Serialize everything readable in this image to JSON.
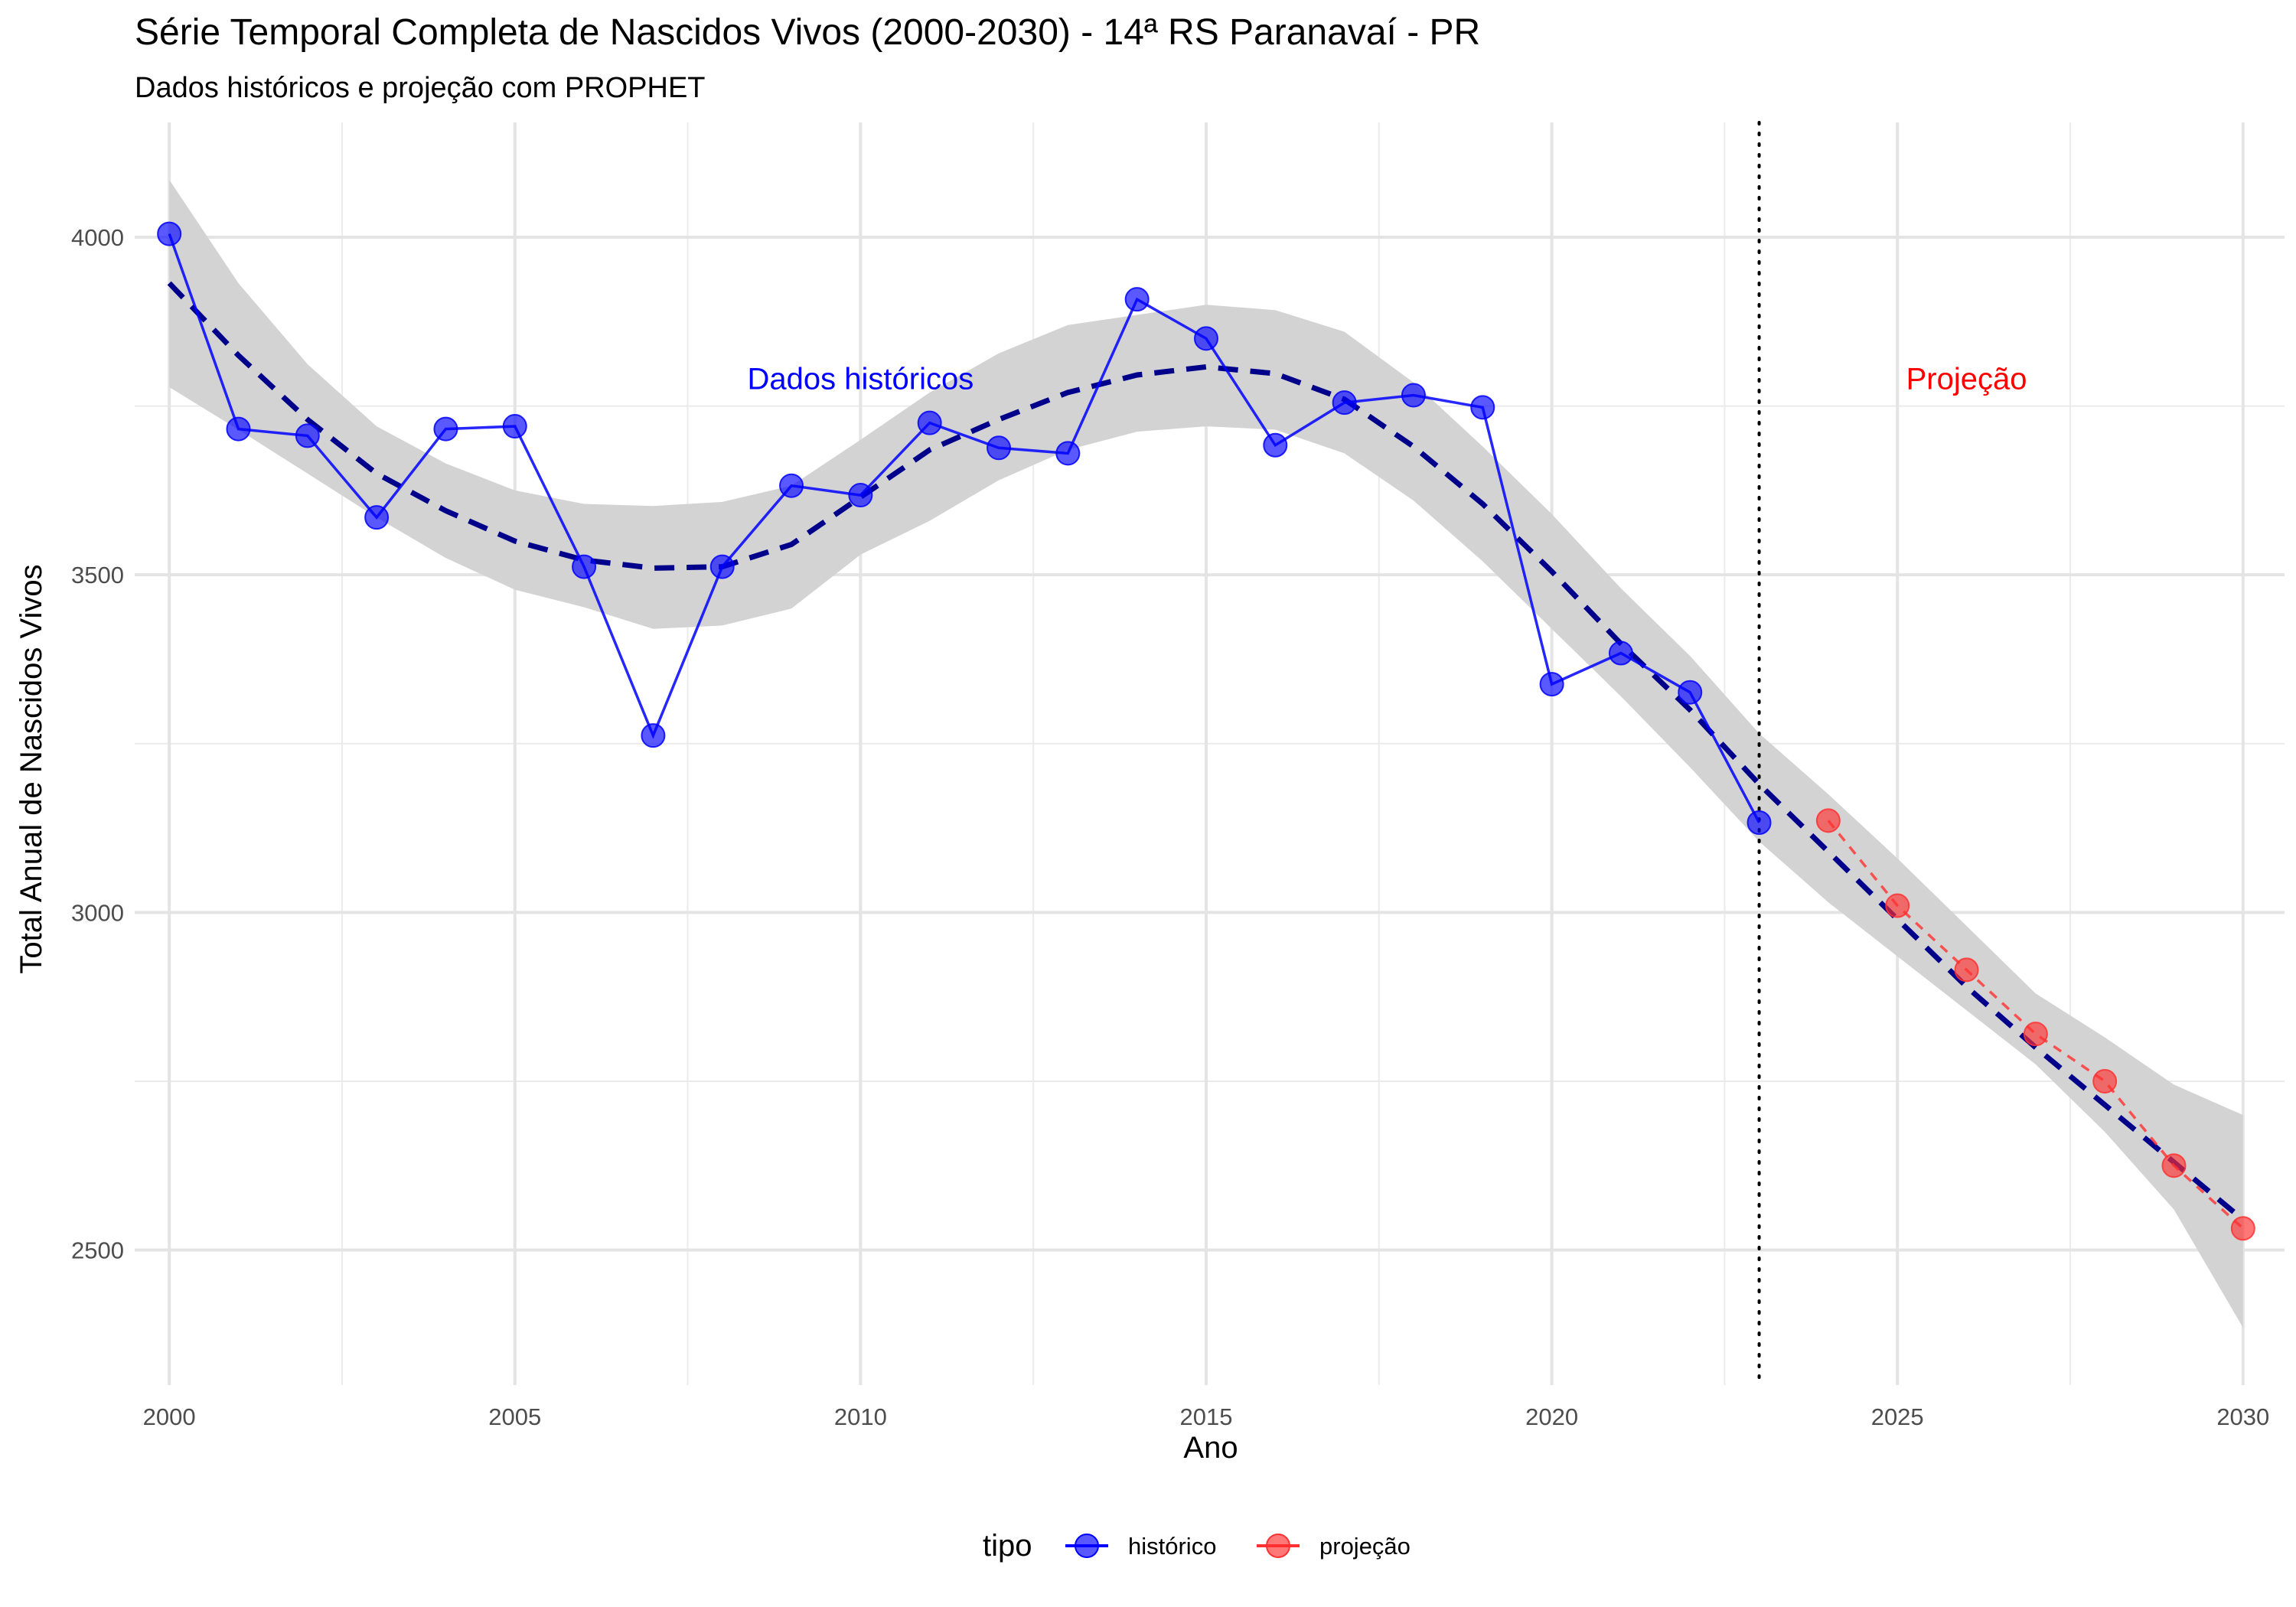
{
  "chart_data": {
    "type": "line",
    "title": "Série Temporal Completa de Nascidos Vivos (2000-2030) -  14ª RS Paranavaí - PR",
    "subtitle": "Dados históricos e projeção com PROPHET",
    "xlabel": "Ano",
    "ylabel": "Total Anual de Nascidos Vivos",
    "xlim": [
      1999.5,
      2030.6
    ],
    "ylim": [
      2300,
      4170
    ],
    "x_ticks": [
      2000,
      2005,
      2010,
      2015,
      2020,
      2025,
      2030
    ],
    "y_ticks": [
      2500,
      3000,
      3500,
      4000
    ],
    "grid": true,
    "legend": {
      "title": "tipo",
      "position": "bottom",
      "entries": [
        {
          "label": "histórico",
          "color": "#0000ff"
        },
        {
          "label": "projeção",
          "color": "#ff3030"
        }
      ]
    },
    "series": [
      {
        "name": "histórico",
        "color": "#0000ff",
        "style": "solid",
        "x": [
          2000,
          2001,
          2002,
          2003,
          2004,
          2005,
          2006,
          2007,
          2008,
          2009,
          2010,
          2011,
          2012,
          2013,
          2014,
          2015,
          2016,
          2017,
          2018,
          2019,
          2020,
          2021,
          2022,
          2023
        ],
        "y": [
          4005,
          3716,
          3706,
          3585,
          3716,
          3720,
          3512,
          3262,
          3512,
          3632,
          3618,
          3725,
          3688,
          3680,
          3908,
          3850,
          3692,
          3755,
          3766,
          3748,
          3338,
          3384,
          3326,
          3133
        ]
      },
      {
        "name": "projeção",
        "color": "#ff3030",
        "style": "dashed",
        "x": [
          2024,
          2025,
          2026,
          2027,
          2028,
          2029,
          2030
        ],
        "y": [
          3136,
          3010,
          2915,
          2820,
          2750,
          2625,
          2532
        ]
      }
    ],
    "trend": {
      "color": "#00008b",
      "style": "dashed",
      "x": [
        2000,
        2001,
        2002,
        2003,
        2004,
        2005,
        2006,
        2007,
        2008,
        2009,
        2010,
        2011,
        2012,
        2013,
        2014,
        2015,
        2016,
        2017,
        2018,
        2019,
        2020,
        2021,
        2022,
        2023,
        2024,
        2025,
        2026,
        2027,
        2028,
        2029,
        2030
      ],
      "y": [
        3932,
        3825,
        3730,
        3650,
        3595,
        3550,
        3522,
        3510,
        3512,
        3545,
        3615,
        3685,
        3730,
        3770,
        3796,
        3808,
        3798,
        3760,
        3690,
        3605,
        3505,
        3398,
        3300,
        3190,
        3090,
        2990,
        2890,
        2800,
        2715,
        2630,
        2545
      ],
      "ci_lower": [
        3778,
        3715,
        3650,
        3585,
        3525,
        3478,
        3452,
        3420,
        3425,
        3450,
        3530,
        3580,
        3640,
        3685,
        3712,
        3720,
        3715,
        3680,
        3610,
        3520,
        3420,
        3320,
        3215,
        3105,
        3015,
        2935,
        2855,
        2775,
        2675,
        2560,
        2385
      ],
      "ci_upper": [
        4085,
        3932,
        3812,
        3720,
        3665,
        3625,
        3605,
        3602,
        3608,
        3632,
        3700,
        3770,
        3828,
        3870,
        3885,
        3900,
        3892,
        3860,
        3785,
        3690,
        3590,
        3480,
        3380,
        3265,
        3175,
        3080,
        2980,
        2880,
        2815,
        2745,
        2700
      ]
    },
    "annotations": [
      {
        "text": "Dados históricos",
        "x": 2010,
        "y": 3790,
        "color": "#0000ff"
      },
      {
        "text": "Projeção",
        "x": 2026,
        "y": 3790,
        "color": "#ff0000"
      }
    ],
    "vline": {
      "x": 2023,
      "style": "dotted",
      "color": "#000000"
    }
  }
}
